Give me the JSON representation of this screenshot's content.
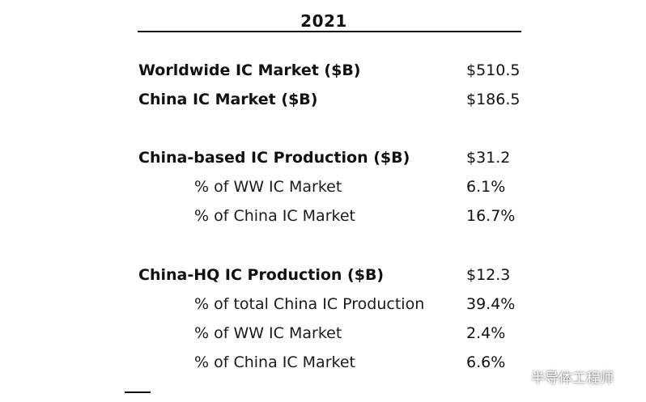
{
  "table": {
    "year": "2021",
    "rows": [
      {
        "label": "Worldwide IC Market ($B)",
        "value": "$510.5"
      },
      {
        "label": "China IC Market ($B)",
        "value": "$186.5"
      },
      {
        "label": "China-based IC Production ($B)",
        "value": "$31.2"
      },
      {
        "label": "% of WW IC Market",
        "value": "6.1%"
      },
      {
        "label": "% of China IC Market",
        "value": "16.7%"
      },
      {
        "label": "China-HQ IC Production ($B)",
        "value": "$12.3"
      },
      {
        "label": "% of total China IC Production",
        "value": "39.4%"
      },
      {
        "label": "% of WW IC Market",
        "value": "2.4%"
      },
      {
        "label": "% of China IC Market",
        "value": "6.6%"
      }
    ]
  },
  "watermark": {
    "text": "半导体工程师",
    "icon": "wechat-icon"
  }
}
